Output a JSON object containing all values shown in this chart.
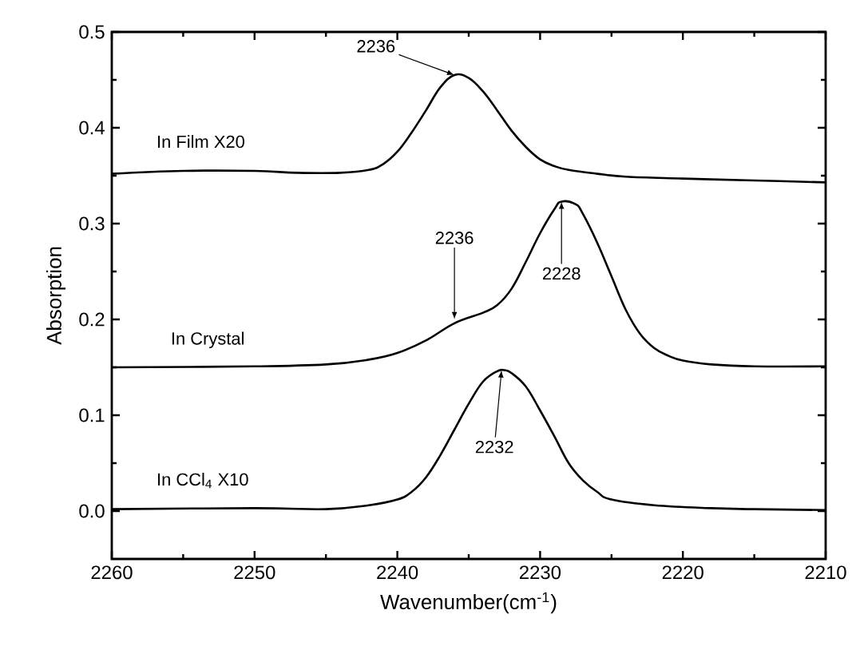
{
  "chart_data": {
    "type": "line",
    "xlabel": "Wavenumber(cm$^{-1}$)",
    "ylabel": "Absorption",
    "xlim": [
      2260,
      2210
    ],
    "ylim": [
      -0.05,
      0.5
    ],
    "xticks": [
      2260,
      2250,
      2240,
      2230,
      2220,
      2210
    ],
    "yticks": [
      {
        "value": 0,
        "label": "0.0"
      },
      0.1,
      0.2,
      0.3,
      0.4,
      0.5
    ],
    "series": [
      {
        "name": "In Film X20",
        "color": "#000000",
        "x": [
          2260,
          2255,
          2250,
          2247,
          2244,
          2242,
          2241,
          2240,
          2239,
          2238,
          2237,
          2236,
          2235,
          2234,
          2233,
          2232,
          2231,
          2230,
          2229,
          2228,
          2226,
          2224,
          2220,
          2215,
          2210
        ],
        "values": [
          0.352,
          0.355,
          0.355,
          0.353,
          0.353,
          0.356,
          0.362,
          0.375,
          0.395,
          0.418,
          0.442,
          0.455,
          0.452,
          0.438,
          0.418,
          0.397,
          0.38,
          0.367,
          0.36,
          0.356,
          0.352,
          0.349,
          0.347,
          0.345,
          0.343
        ]
      },
      {
        "name": "In Crystal",
        "color": "#000000",
        "x": [
          2260,
          2250,
          2245,
          2242,
          2240,
          2238,
          2236,
          2234,
          2233,
          2232,
          2231,
          2230,
          2229,
          2228.5,
          2227.5,
          2227,
          2226,
          2225,
          2224,
          2223,
          2222,
          2221,
          2220,
          2218,
          2215,
          2210
        ],
        "values": [
          0.15,
          0.151,
          0.153,
          0.158,
          0.165,
          0.178,
          0.196,
          0.207,
          0.215,
          0.232,
          0.26,
          0.29,
          0.315,
          0.323,
          0.32,
          0.31,
          0.28,
          0.245,
          0.21,
          0.185,
          0.17,
          0.162,
          0.157,
          0.153,
          0.151,
          0.151
        ]
      },
      {
        "name": "In CCl$_{4}$ X10",
        "color": "#000000",
        "x": [
          2260,
          2250,
          2245,
          2242,
          2240,
          2239,
          2238,
          2237,
          2236,
          2235,
          2234,
          2233,
          2232.5,
          2232,
          2231,
          2230,
          2229,
          2228,
          2227,
          2226,
          2225,
          2222,
          2218,
          2215,
          2210
        ],
        "values": [
          0.002,
          0.003,
          0.002,
          0.006,
          0.012,
          0.02,
          0.035,
          0.058,
          0.085,
          0.112,
          0.135,
          0.146,
          0.147,
          0.144,
          0.13,
          0.105,
          0.078,
          0.05,
          0.032,
          0.02,
          0.012,
          0.006,
          0.003,
          0.002,
          0.001
        ]
      }
    ],
    "annotations": [
      {
        "text": "2236",
        "x": 2236,
        "y": 0.455
      },
      {
        "text": "2236",
        "x": 2236,
        "y": 0.2
      },
      {
        "text": "2228",
        "x": 2228.5,
        "y": 0.323
      },
      {
        "text": "2232",
        "x": 2232.7,
        "y": 0.147
      }
    ]
  }
}
